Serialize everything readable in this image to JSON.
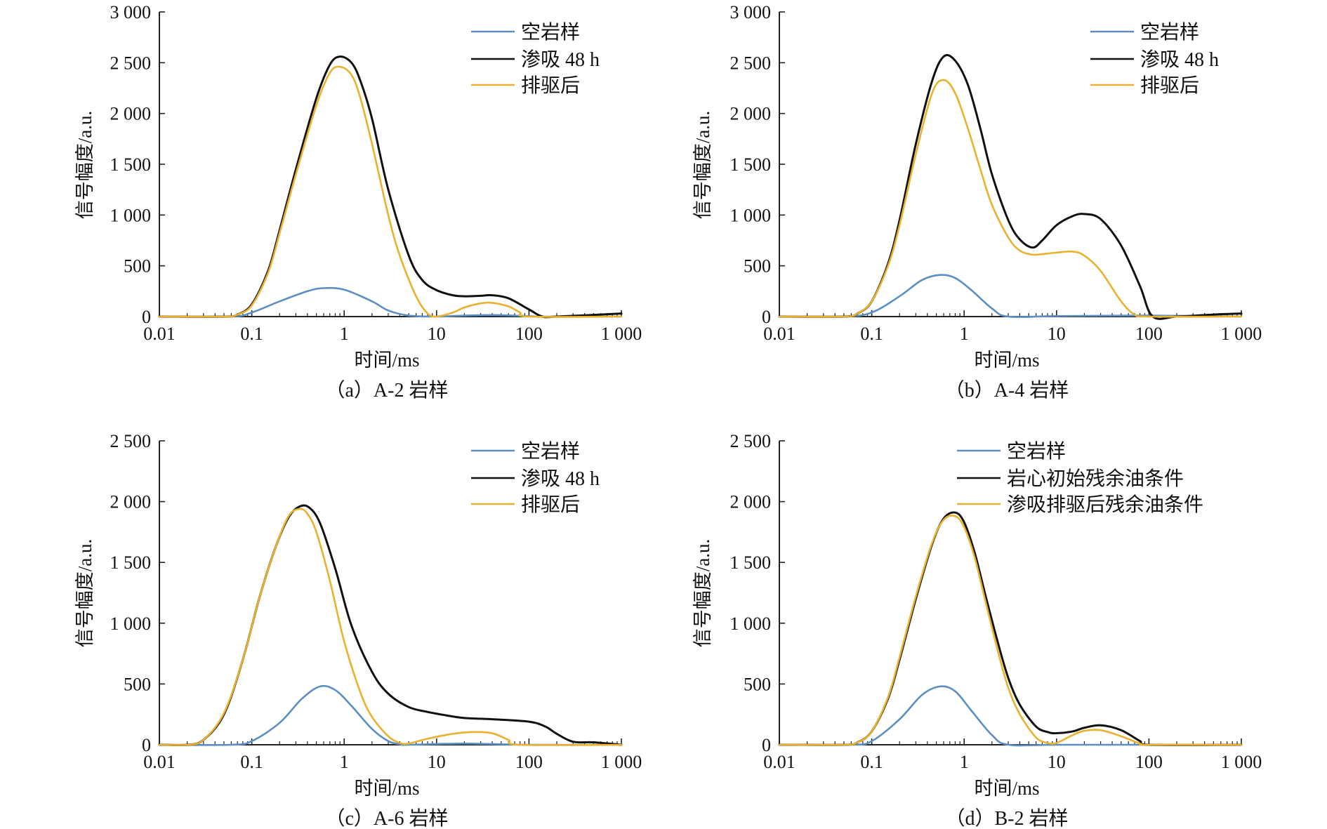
{
  "colors": {
    "empty": "#5b8fc2",
    "imbibition": "#111111",
    "drive": "#eab12f"
  },
  "chart_data": [
    {
      "id": "a",
      "type": "line",
      "caption": "（a）A-2 岩样",
      "xlabel": "时间/ms",
      "ylabel": "信号幅度/a.u.",
      "xscale": "log",
      "xlim": [
        0.01,
        1000
      ],
      "ylim": [
        0,
        3000
      ],
      "xticks": [
        0.01,
        0.1,
        1,
        10,
        100,
        1000
      ],
      "xtick_labels": [
        "0.01",
        "0.1",
        "1",
        "10",
        "100",
        "1 000"
      ],
      "yticks": [
        0,
        500,
        1000,
        1500,
        2000,
        2500,
        3000
      ],
      "ytick_labels": [
        "0",
        "500",
        "1 000",
        "1 500",
        "2 000",
        "2 500",
        "3 000"
      ],
      "legend_position": "top-right",
      "series": [
        {
          "name": "空岩样",
          "color_key": "empty",
          "x": [
            0.01,
            0.06,
            0.1,
            0.2,
            0.4,
            0.6,
            1,
            2,
            3,
            5,
            10,
            20,
            40,
            80,
            150,
            1000
          ],
          "y": [
            0,
            0,
            40,
            150,
            250,
            280,
            265,
            150,
            60,
            10,
            0,
            10,
            15,
            8,
            0,
            0
          ]
        },
        {
          "name": "渗吸 48 h",
          "color_key": "imbibition",
          "x": [
            0.01,
            0.05,
            0.07,
            0.1,
            0.15,
            0.2,
            0.3,
            0.5,
            0.7,
            0.9,
            1.2,
            1.5,
            2,
            3,
            5,
            7,
            10,
            15,
            20,
            30,
            40,
            60,
            100,
            140,
            200,
            1000
          ],
          "y": [
            0,
            0,
            20,
            120,
            450,
            850,
            1450,
            2150,
            2480,
            2560,
            2500,
            2320,
            1950,
            1250,
            600,
            360,
            260,
            210,
            200,
            205,
            210,
            180,
            70,
            0,
            0,
            30
          ]
        },
        {
          "name": "排驱后",
          "color_key": "drive",
          "x": [
            0.01,
            0.05,
            0.07,
            0.1,
            0.15,
            0.2,
            0.3,
            0.5,
            0.7,
            0.9,
            1.2,
            1.5,
            2,
            3,
            4,
            6,
            8,
            10,
            15,
            20,
            30,
            40,
            60,
            80,
            100,
            1000
          ],
          "y": [
            0,
            0,
            20,
            110,
            430,
            820,
            1400,
            2080,
            2400,
            2460,
            2380,
            2150,
            1700,
            1000,
            600,
            200,
            30,
            0,
            40,
            90,
            130,
            135,
            100,
            40,
            0,
            0
          ]
        }
      ]
    },
    {
      "id": "b",
      "type": "line",
      "caption": "（b）A-4 岩样",
      "xlabel": "时间/ms",
      "ylabel": "信号幅度/a.u.",
      "xscale": "log",
      "xlim": [
        0.01,
        1000
      ],
      "ylim": [
        0,
        3000
      ],
      "xticks": [
        0.01,
        0.1,
        1,
        10,
        100,
        1000
      ],
      "xtick_labels": [
        "0.01",
        "0.1",
        "1",
        "10",
        "100",
        "1 000"
      ],
      "yticks": [
        0,
        500,
        1000,
        1500,
        2000,
        2500,
        3000
      ],
      "ytick_labels": [
        "0",
        "500",
        "1 000",
        "1 500",
        "2 000",
        "2 500",
        "3 000"
      ],
      "legend_position": "top-right",
      "series": [
        {
          "name": "空岩样",
          "color_key": "empty",
          "x": [
            0.01,
            0.05,
            0.1,
            0.2,
            0.35,
            0.55,
            0.8,
            1.2,
            2,
            3,
            10,
            100,
            1000
          ],
          "y": [
            0,
            0,
            40,
            200,
            360,
            410,
            380,
            260,
            80,
            0,
            5,
            10,
            0
          ]
        },
        {
          "name": "渗吸 48 h",
          "color_key": "imbibition",
          "x": [
            0.01,
            0.05,
            0.07,
            0.1,
            0.15,
            0.2,
            0.3,
            0.45,
            0.6,
            0.8,
            1.1,
            1.5,
            2,
            3,
            4,
            5.5,
            7,
            10,
            15,
            20,
            30,
            50,
            80,
            110,
            200,
            500,
            1000
          ],
          "y": [
            0,
            0,
            30,
            150,
            520,
            950,
            1700,
            2320,
            2560,
            2520,
            2280,
            1850,
            1400,
            950,
            760,
            680,
            750,
            900,
            990,
            1010,
            960,
            700,
            300,
            0,
            0,
            20,
            30
          ]
        },
        {
          "name": "排驱后",
          "color_key": "drive",
          "x": [
            0.01,
            0.05,
            0.07,
            0.1,
            0.15,
            0.2,
            0.3,
            0.45,
            0.6,
            0.8,
            1.1,
            1.5,
            2,
            3,
            4,
            5.5,
            7,
            10,
            15,
            20,
            30,
            50,
            70,
            100,
            1000
          ],
          "y": [
            0,
            0,
            30,
            150,
            500,
            900,
            1600,
            2200,
            2330,
            2200,
            1850,
            1450,
            1100,
            780,
            650,
            610,
            615,
            630,
            640,
            600,
            450,
            150,
            20,
            0,
            0
          ]
        }
      ]
    },
    {
      "id": "c",
      "type": "line",
      "caption": "（c）A-6 岩样",
      "xlabel": "时间/ms",
      "ylabel": "信号幅度/a.u.",
      "xscale": "log",
      "xlim": [
        0.01,
        1000
      ],
      "ylim": [
        0,
        2500
      ],
      "xticks": [
        0.01,
        0.1,
        1,
        10,
        100,
        1000
      ],
      "xtick_labels": [
        "0.01",
        "0.1",
        "1",
        "10",
        "100",
        "1 000"
      ],
      "yticks": [
        0,
        500,
        1000,
        1500,
        2000,
        2500
      ],
      "ytick_labels": [
        "0",
        "500",
        "1 000",
        "1 500",
        "2 000",
        "2 500"
      ],
      "legend_position": "top-right",
      "series": [
        {
          "name": "空岩样",
          "color_key": "empty",
          "x": [
            0.01,
            0.06,
            0.1,
            0.2,
            0.35,
            0.55,
            0.8,
            1.2,
            2,
            3,
            4,
            5,
            20,
            100,
            1000
          ],
          "y": [
            0,
            0,
            30,
            180,
            380,
            480,
            450,
            320,
            130,
            30,
            5,
            0,
            10,
            0,
            0
          ]
        },
        {
          "name": "渗吸 48 h",
          "color_key": "imbibition",
          "x": [
            0.01,
            0.02,
            0.03,
            0.05,
            0.08,
            0.12,
            0.18,
            0.25,
            0.33,
            0.42,
            0.55,
            0.8,
            1.2,
            2,
            3,
            5,
            8,
            12,
            20,
            40,
            100,
            150,
            200,
            300,
            500,
            1000
          ],
          "y": [
            0,
            0,
            40,
            250,
            700,
            1200,
            1620,
            1870,
            1960,
            1950,
            1820,
            1450,
            980,
            600,
            420,
            310,
            270,
            245,
            220,
            210,
            190,
            150,
            90,
            25,
            20,
            0
          ]
        },
        {
          "name": "排驱后",
          "color_key": "drive",
          "x": [
            0.01,
            0.02,
            0.03,
            0.05,
            0.08,
            0.12,
            0.18,
            0.25,
            0.33,
            0.4,
            0.5,
            0.7,
            1,
            1.5,
            2,
            3,
            4,
            5,
            8,
            15,
            25,
            40,
            60,
            80,
            1000
          ],
          "y": [
            0,
            0,
            40,
            260,
            700,
            1200,
            1620,
            1880,
            1940,
            1900,
            1750,
            1350,
            850,
            430,
            230,
            70,
            15,
            10,
            50,
            90,
            105,
            95,
            40,
            0,
            0
          ]
        }
      ]
    },
    {
      "id": "d",
      "type": "line",
      "caption": "（d）B-2 岩样",
      "xlabel": "时间/ms",
      "ylabel": "信号幅度/a.u.",
      "xscale": "log",
      "xlim": [
        0.01,
        1000
      ],
      "ylim": [
        0,
        2500
      ],
      "xticks": [
        0.01,
        0.1,
        1,
        10,
        100,
        1000
      ],
      "xtick_labels": [
        "0.01",
        "0.1",
        "1",
        "10",
        "100",
        "1 000"
      ],
      "yticks": [
        0,
        500,
        1000,
        1500,
        2000,
        2500
      ],
      "ytick_labels": [
        "0",
        "500",
        "1 000",
        "1 500",
        "2 000",
        "2 500"
      ],
      "legend_position": "top-right",
      "series": [
        {
          "name": "空岩样",
          "color_key": "empty",
          "x": [
            0.01,
            0.06,
            0.1,
            0.2,
            0.35,
            0.55,
            0.8,
            1.2,
            2,
            3,
            10,
            100,
            1000
          ],
          "y": [
            0,
            0,
            30,
            210,
            410,
            480,
            440,
            280,
            80,
            0,
            0,
            0,
            0
          ]
        },
        {
          "name": "岩心初始残余油条件",
          "color_key": "imbibition",
          "x": [
            0.01,
            0.05,
            0.07,
            0.1,
            0.15,
            0.2,
            0.3,
            0.45,
            0.6,
            0.8,
            1,
            1.3,
            1.7,
            2.3,
            3,
            4,
            6,
            8,
            10,
            15,
            20,
            30,
            50,
            80,
            100,
            1000
          ],
          "y": [
            0,
            0,
            20,
            110,
            380,
            700,
            1200,
            1650,
            1860,
            1910,
            1830,
            1580,
            1230,
            850,
            550,
            330,
            150,
            105,
            95,
            110,
            140,
            160,
            120,
            30,
            0,
            0
          ]
        },
        {
          "name": "渗吸排驱后残余油条件",
          "color_key": "drive",
          "x": [
            0.01,
            0.05,
            0.07,
            0.1,
            0.15,
            0.2,
            0.3,
            0.45,
            0.6,
            0.8,
            1,
            1.3,
            1.7,
            2.3,
            3,
            4,
            6,
            8,
            10,
            15,
            20,
            30,
            50,
            80,
            100,
            1000
          ],
          "y": [
            0,
            0,
            20,
            110,
            390,
            720,
            1220,
            1660,
            1850,
            1880,
            1790,
            1540,
            1180,
            780,
            470,
            250,
            60,
            15,
            15,
            80,
            115,
            120,
            70,
            10,
            0,
            0
          ]
        }
      ]
    }
  ]
}
